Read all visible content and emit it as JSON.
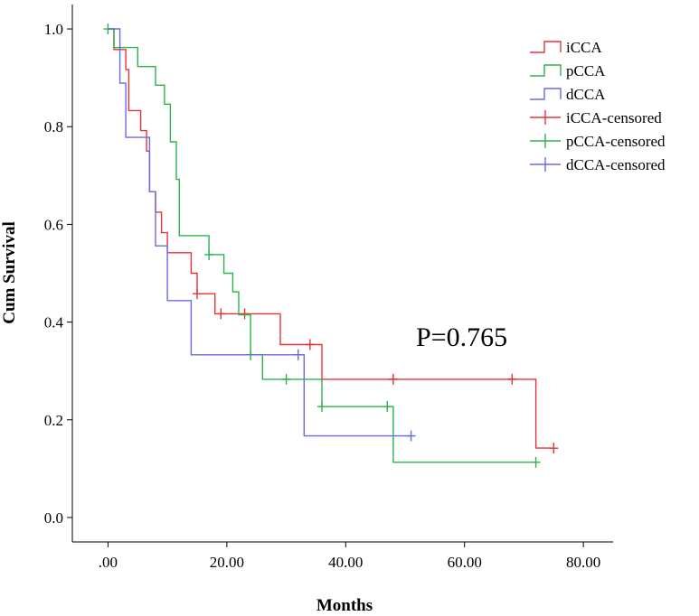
{
  "chart_data": {
    "type": "line",
    "subtype": "kaplan-meier",
    "xlabel": "Months",
    "ylabel": "Cum Survival",
    "xlim": [
      -6,
      85
    ],
    "ylim": [
      -0.05,
      1.05
    ],
    "xticks": [
      {
        "value": 0,
        "label": ".00"
      },
      {
        "value": 20,
        "label": "20.00"
      },
      {
        "value": 40,
        "label": "40.00"
      },
      {
        "value": 60,
        "label": "60.00"
      },
      {
        "value": 80,
        "label": "80.00"
      }
    ],
    "yticks": [
      {
        "value": 0.0,
        "label": "0.0"
      },
      {
        "value": 0.2,
        "label": "0.2"
      },
      {
        "value": 0.4,
        "label": "0.4"
      },
      {
        "value": 0.6,
        "label": "0.6"
      },
      {
        "value": 0.8,
        "label": "0.8"
      },
      {
        "value": 1.0,
        "label": "1.0"
      }
    ],
    "annotation": "P=0.765",
    "legend_position": "top-right",
    "legend": [
      "iCCA",
      "pCCA",
      "dCCA",
      "iCCA-censored",
      "pCCA-censored",
      "dCCA-censored"
    ],
    "series": [
      {
        "name": "iCCA",
        "color": "#e8323a",
        "steps": [
          [
            0,
            1.0
          ],
          [
            1,
            0.958
          ],
          [
            3,
            0.917
          ],
          [
            3.5,
            0.833
          ],
          [
            5.5,
            0.792
          ],
          [
            6.5,
            0.75
          ],
          [
            7,
            0.667
          ],
          [
            8,
            0.625
          ],
          [
            9,
            0.583
          ],
          [
            10,
            0.542
          ],
          [
            14,
            0.5
          ],
          [
            15,
            0.458
          ],
          [
            18,
            0.417
          ],
          [
            29,
            0.354
          ],
          [
            36,
            0.283
          ],
          [
            72,
            0.142
          ],
          [
            75,
            0.142
          ]
        ],
        "censored": [
          [
            15,
            0.458
          ],
          [
            19,
            0.417
          ],
          [
            23,
            0.417
          ],
          [
            34,
            0.354
          ],
          [
            48,
            0.283
          ],
          [
            68,
            0.283
          ],
          [
            75,
            0.142
          ]
        ]
      },
      {
        "name": "pCCA",
        "color": "#2db34a",
        "steps": [
          [
            0,
            1.0
          ],
          [
            1,
            0.962
          ],
          [
            5,
            0.923
          ],
          [
            8,
            0.885
          ],
          [
            9.5,
            0.846
          ],
          [
            10.5,
            0.769
          ],
          [
            11.5,
            0.692
          ],
          [
            12,
            0.577
          ],
          [
            17,
            0.538
          ],
          [
            19.5,
            0.5
          ],
          [
            21,
            0.462
          ],
          [
            22,
            0.415
          ],
          [
            24,
            0.333
          ],
          [
            26,
            0.283
          ],
          [
            36,
            0.227
          ],
          [
            48,
            0.113
          ],
          [
            72,
            0.113
          ]
        ],
        "censored": [
          [
            0,
            1.0
          ],
          [
            17,
            0.538
          ],
          [
            24,
            0.333
          ],
          [
            30,
            0.283
          ],
          [
            36,
            0.227
          ],
          [
            47,
            0.227
          ],
          [
            72,
            0.113
          ]
        ]
      },
      {
        "name": "dCCA",
        "color": "#6b6be0",
        "steps": [
          [
            0,
            1.0
          ],
          [
            2,
            0.889
          ],
          [
            3,
            0.778
          ],
          [
            7,
            0.667
          ],
          [
            8,
            0.556
          ],
          [
            10,
            0.444
          ],
          [
            14,
            0.333
          ],
          [
            33,
            0.167
          ],
          [
            51,
            0.167
          ]
        ],
        "censored": [
          [
            32,
            0.333
          ],
          [
            51,
            0.167
          ]
        ]
      }
    ]
  }
}
